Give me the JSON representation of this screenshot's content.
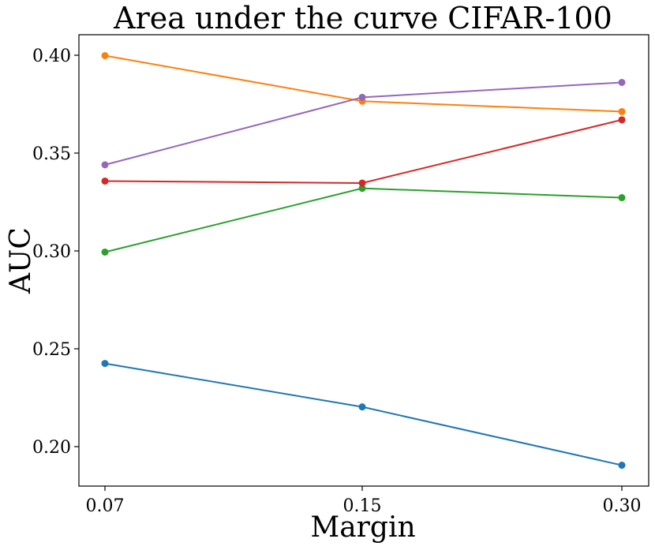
{
  "chart_data": {
    "type": "line",
    "title": "Area under the curve CIFAR-100",
    "xlabel": "Margin",
    "ylabel": "AUC",
    "categories": [
      "0.07",
      "0.15",
      "0.30"
    ],
    "ylim": [
      0.18,
      0.41
    ],
    "yticks": [
      0.2,
      0.25,
      0.3,
      0.35,
      0.4
    ],
    "ytick_labels": [
      "0.20",
      "0.25",
      "0.30",
      "0.35",
      "0.40"
    ],
    "grid": false,
    "legend": "none",
    "series": [
      {
        "name": "series-blue",
        "color": "#1f77b4",
        "values": [
          0.2425,
          0.2203,
          0.1905
        ]
      },
      {
        "name": "series-orange",
        "color": "#ff7f0e",
        "values": [
          0.3998,
          0.3765,
          0.3712
        ]
      },
      {
        "name": "series-green",
        "color": "#2ca02c",
        "values": [
          0.2994,
          0.332,
          0.3272
        ]
      },
      {
        "name": "series-red",
        "color": "#d62728",
        "values": [
          0.3357,
          0.3347,
          0.367
        ]
      },
      {
        "name": "series-purple",
        "color": "#9467bd",
        "values": [
          0.344,
          0.3785,
          0.3861
        ]
      }
    ]
  }
}
